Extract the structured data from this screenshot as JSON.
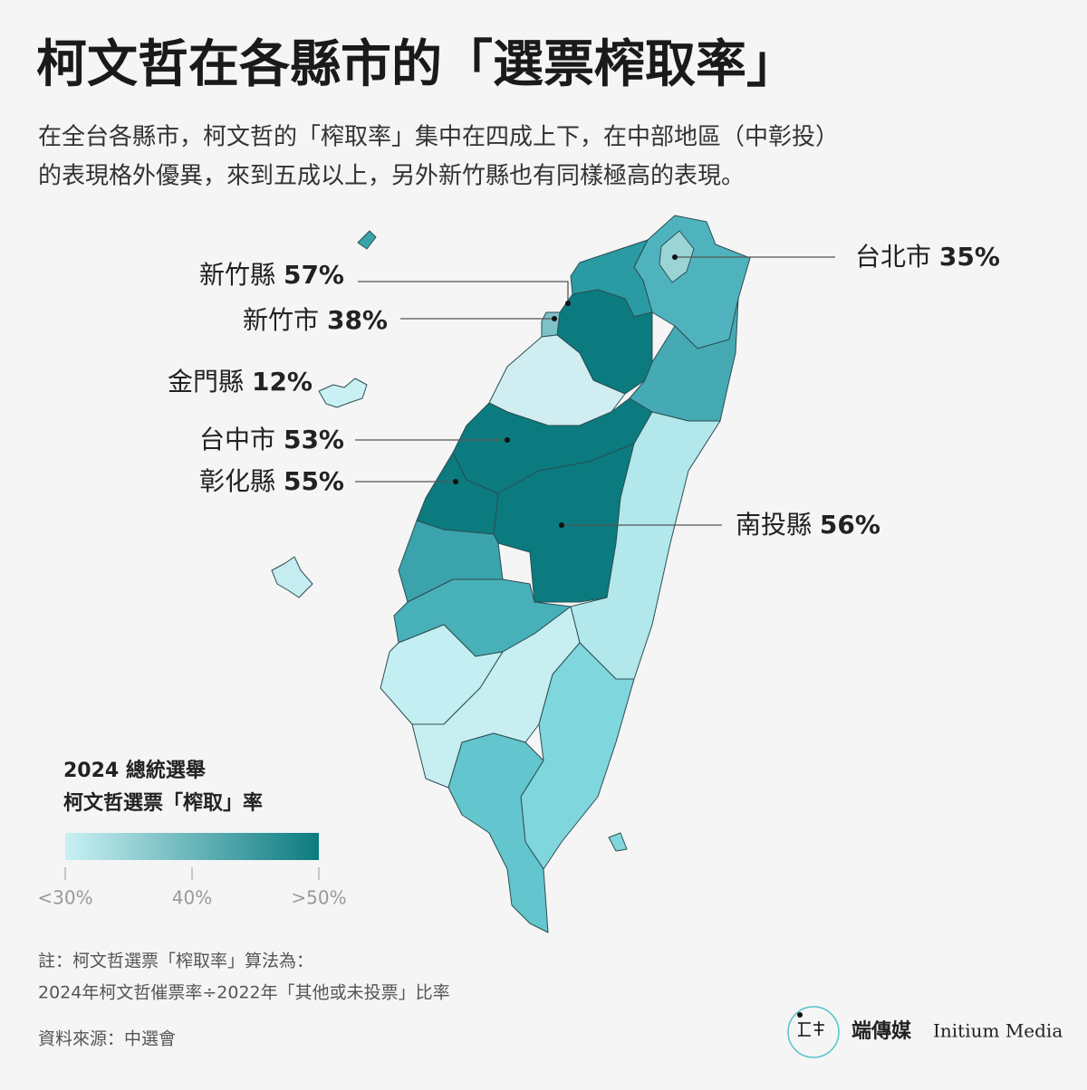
{
  "title": "柯文哲在各縣市的「選票榨取率」",
  "subtitle": [
    "在全台各縣市，柯文哲的「榨取率」集中在四成上下，在中部地區（中彰投）",
    "的表現格外優異，來到五成以上，另外新竹縣也有同樣極高的表現。"
  ],
  "map": {
    "counties": [
      "新竹縣",
      "新竹市",
      "金門縣",
      "台中市",
      "彰化縣",
      "台北市",
      "南投縣"
    ],
    "values": [
      57,
      38,
      12,
      53,
      55,
      35,
      56
    ],
    "value_labels": [
      "57%",
      "38%",
      "12%",
      "53%",
      "55%",
      "35%",
      "56%"
    ]
  },
  "legend": {
    "title": [
      "2024 總統選舉",
      "柯文哲選票「榨取」率"
    ],
    "colors": [
      "#c9f1f4",
      "#0b7b80"
    ],
    "range": [
      30,
      50
    ],
    "ticks": [
      {
        "value": 30,
        "label": "<30%"
      },
      {
        "value": 40,
        "label": "40%"
      },
      {
        "value": 50,
        "label": ">50%"
      }
    ]
  },
  "notes": [
    "註：柯文哲選票「榨取率」算法為：",
    "2024年柯文哲催票率÷2022年「其他或未投票」比率"
  ],
  "source": "資料來源：中選會",
  "brand": {
    "name": "端傳媒",
    "name_en": "Initium Media"
  }
}
